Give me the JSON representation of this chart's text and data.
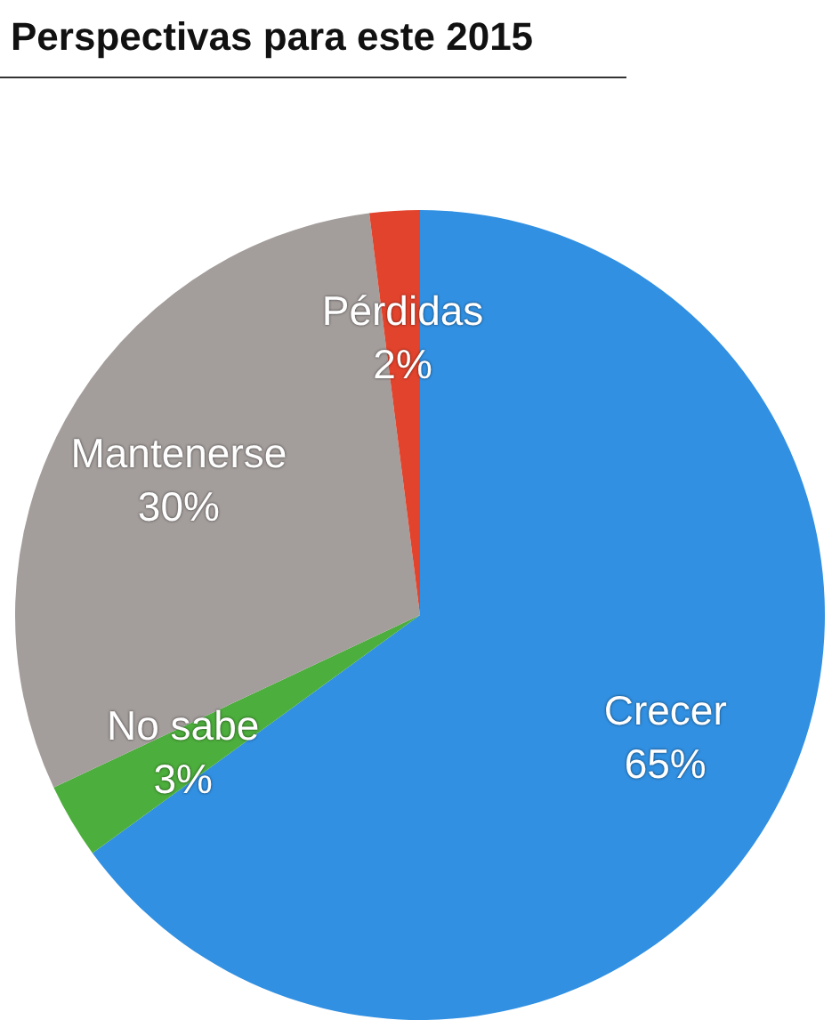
{
  "chart_data": {
    "type": "pie",
    "title": "Perspectivas para este 2015",
    "categories": [
      "Crecer",
      "No sabe",
      "Mantenerse",
      "Pérdidas"
    ],
    "values": [
      65,
      3,
      30,
      2
    ],
    "value_labels": [
      "65%",
      "3%",
      "30%",
      "2%"
    ],
    "colors": [
      "#3190e2",
      "#4cae3c",
      "#a39d9b",
      "#e2432c"
    ]
  }
}
